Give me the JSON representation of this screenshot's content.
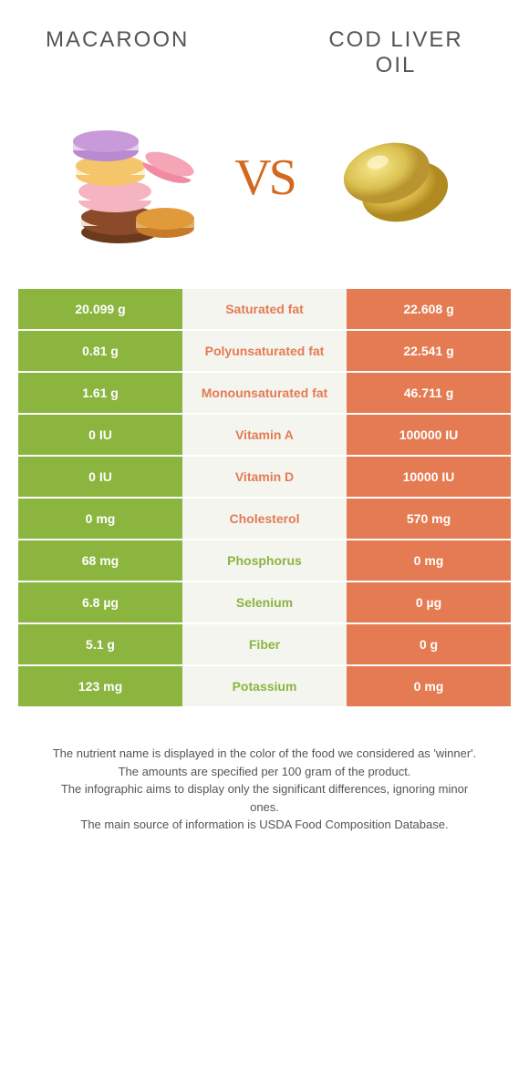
{
  "colors": {
    "left": "#8bb53f",
    "right": "#e47b52",
    "mid_bg": "#f5f5f0",
    "vs": "#d2691e"
  },
  "header": {
    "left_title": "MACAROON",
    "right_title": "COD LIVER OIL",
    "vs_label": "VS"
  },
  "rows": [
    {
      "left": "20.099 g",
      "label": "Saturated fat",
      "right": "22.608 g",
      "winner": "right"
    },
    {
      "left": "0.81 g",
      "label": "Polyunsaturated fat",
      "right": "22.541 g",
      "winner": "right"
    },
    {
      "left": "1.61 g",
      "label": "Monounsaturated fat",
      "right": "46.711 g",
      "winner": "right"
    },
    {
      "left": "0 IU",
      "label": "Vitamin A",
      "right": "100000 IU",
      "winner": "right"
    },
    {
      "left": "0 IU",
      "label": "Vitamin D",
      "right": "10000 IU",
      "winner": "right"
    },
    {
      "left": "0 mg",
      "label": "Cholesterol",
      "right": "570 mg",
      "winner": "right"
    },
    {
      "left": "68 mg",
      "label": "Phosphorus",
      "right": "0 mg",
      "winner": "left"
    },
    {
      "left": "6.8 µg",
      "label": "Selenium",
      "right": "0 µg",
      "winner": "left"
    },
    {
      "left": "5.1 g",
      "label": "Fiber",
      "right": "0 g",
      "winner": "left"
    },
    {
      "left": "123 mg",
      "label": "Potassium",
      "right": "0 mg",
      "winner": "left"
    }
  ],
  "footer": {
    "line1": "The nutrient name is displayed in the color of the food we considered as 'winner'.",
    "line2": "The amounts are specified per 100 gram of the product.",
    "line3": "The infographic aims to display only the significant differences, ignoring minor ones.",
    "line4": "The main source of information is USDA Food Composition Database."
  }
}
